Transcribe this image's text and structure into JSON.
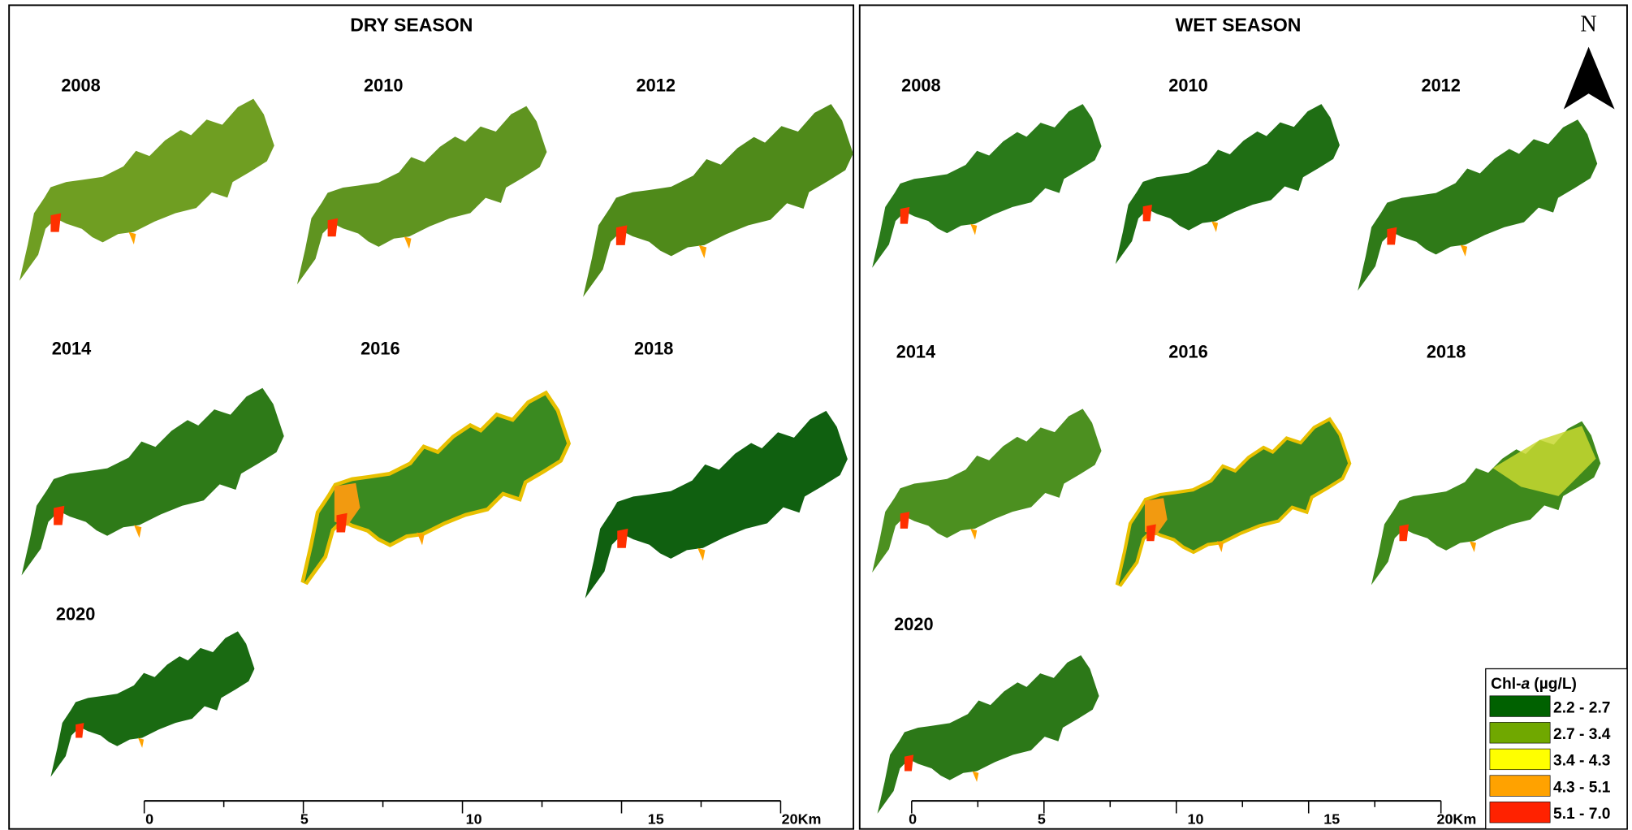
{
  "panels": [
    {
      "title": "DRY SEASON",
      "years": [
        "2008",
        "2010",
        "2012",
        "2014",
        "2016",
        "2018",
        "2020"
      ],
      "scale_bar": [
        "0",
        "5",
        "10",
        "15",
        "20Km"
      ]
    },
    {
      "title": "WET SEASON",
      "years": [
        "2008",
        "2010",
        "2012",
        "2014",
        "2016",
        "2018",
        "2020"
      ],
      "scale_bar": [
        "0",
        "5",
        "10",
        "15",
        "20Km"
      ]
    }
  ],
  "north": "N",
  "legend": {
    "title_parts": [
      "Chl-",
      "a",
      "(µg/L)"
    ],
    "items": [
      {
        "label": "2.2 - 2.7",
        "color": "#006100"
      },
      {
        "label": "2.7 - 3.4",
        "color": "#70a800"
      },
      {
        "label": "3.4 - 4.3",
        "color": "#ffff00"
      },
      {
        "label": "4.3 - 5.1",
        "color": "#ffa200"
      },
      {
        "label": "5.1 - 7.0",
        "color": "#ff2200"
      }
    ]
  }
}
